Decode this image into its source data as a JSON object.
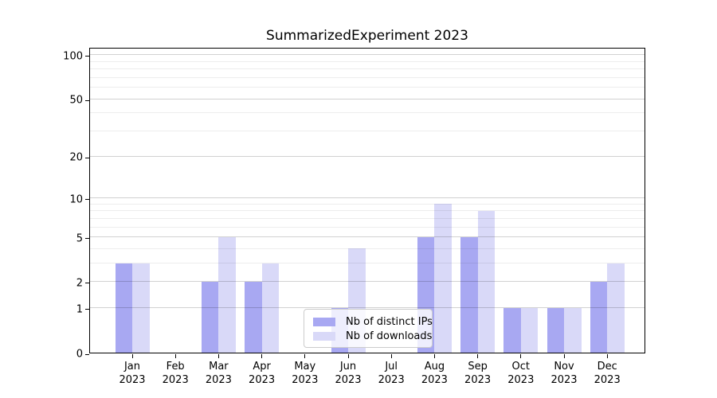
{
  "title": "SummarizedExperiment 2023",
  "chart_data": {
    "type": "bar",
    "title": "SummarizedExperiment 2023",
    "categories": [
      "Jan",
      "Feb",
      "Mar",
      "Apr",
      "May",
      "Jun",
      "Jul",
      "Aug",
      "Sep",
      "Oct",
      "Nov",
      "Dec"
    ],
    "year_label": "2023",
    "series": [
      {
        "name": "Nb of distinct IPs",
        "color": "#a8a8f2",
        "values": [
          3,
          0,
          2,
          2,
          0,
          1,
          0,
          5,
          5,
          1,
          1,
          2
        ]
      },
      {
        "name": "Nb of downloads",
        "color": "#d9d9f8",
        "values": [
          3,
          0,
          5,
          3,
          0,
          4,
          0,
          9,
          8,
          1,
          1,
          3
        ]
      }
    ],
    "yscale": "log1p",
    "ylim": [
      0,
      110
    ],
    "yticks": [
      0,
      1,
      2,
      5,
      10,
      20,
      50,
      100
    ],
    "yticks_minor": [
      3,
      4,
      6,
      7,
      8,
      9,
      30,
      40,
      60,
      70,
      80,
      90
    ],
    "grid": "horizontal major+minor, drawn above bars",
    "legend_position": "lower center",
    "colors": {
      "grid_major": "rgba(0,0,0,0.18)",
      "grid_minor": "rgba(0,0,0,0.07)",
      "spine": "#000000",
      "background": "#ffffff"
    }
  }
}
